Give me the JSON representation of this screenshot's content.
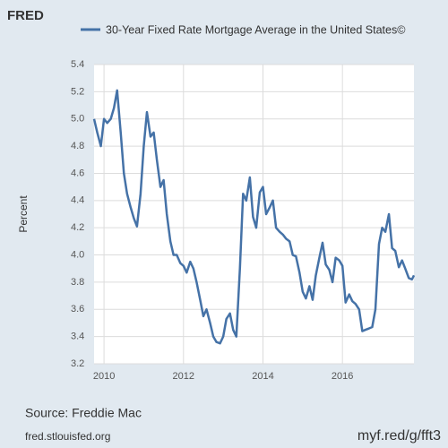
{
  "logo": "FRED",
  "chart_data": {
    "type": "line",
    "title": "30-Year Fixed Rate Mortgage Average in the United States©",
    "y_label": "Percent",
    "source": "Source: Freddie Mac",
    "site": "fred.stlouisfed.org",
    "short_url": "myf.red/g/fft3",
    "xlim": [
      2009.75,
      2017.8
    ],
    "xticks": [
      2010,
      2012,
      2014,
      2016
    ],
    "ylim": [
      3.2,
      5.4
    ],
    "yticks": [
      3.2,
      3.4,
      3.6,
      3.8,
      {
        "value": 4.0,
        "label": "4.0"
      },
      4.2,
      4.4,
      4.6,
      4.8,
      {
        "value": 5.0,
        "label": "5.0"
      },
      5.2,
      5.4
    ],
    "grid": true,
    "x": [
      2009.75,
      2009.83,
      2009.92,
      2010.0,
      2010.08,
      2010.17,
      2010.25,
      2010.33,
      2010.42,
      2010.5,
      2010.58,
      2010.67,
      2010.75,
      2010.83,
      2010.92,
      2011.0,
      2011.08,
      2011.17,
      2011.25,
      2011.33,
      2011.42,
      2011.5,
      2011.58,
      2011.67,
      2011.75,
      2011.83,
      2011.92,
      2012.0,
      2012.08,
      2012.17,
      2012.25,
      2012.33,
      2012.42,
      2012.5,
      2012.58,
      2012.67,
      2012.75,
      2012.83,
      2012.92,
      2013.0,
      2013.08,
      2013.17,
      2013.25,
      2013.33,
      2013.42,
      2013.5,
      2013.58,
      2013.67,
      2013.75,
      2013.83,
      2013.92,
      2014.0,
      2014.08,
      2014.17,
      2014.25,
      2014.33,
      2014.42,
      2014.5,
      2014.58,
      2014.67,
      2014.75,
      2014.83,
      2014.92,
      2015.0,
      2015.08,
      2015.17,
      2015.25,
      2015.33,
      2015.42,
      2015.5,
      2015.58,
      2015.67,
      2015.75,
      2015.83,
      2015.92,
      2016.0,
      2016.08,
      2016.17,
      2016.25,
      2016.33,
      2016.42,
      2016.5,
      2016.58,
      2016.67,
      2016.75,
      2016.83,
      2016.92,
      2017.0,
      2017.08,
      2017.17,
      2017.25,
      2017.33,
      2017.42,
      2017.5,
      2017.58,
      2017.67,
      2017.75,
      2017.8
    ],
    "series": [
      {
        "name": "30-Year Fixed Rate Mortgage Average in the United States©",
        "color": "#4572a7",
        "values": [
          5.0,
          4.9,
          4.8,
          5.0,
          4.97,
          5.0,
          5.08,
          5.21,
          4.9,
          4.6,
          4.45,
          4.35,
          4.27,
          4.21,
          4.45,
          4.8,
          5.05,
          4.87,
          4.9,
          4.7,
          4.5,
          4.55,
          4.3,
          4.1,
          4.0,
          4.0,
          3.94,
          3.92,
          3.87,
          3.95,
          3.9,
          3.8,
          3.67,
          3.55,
          3.6,
          3.5,
          3.4,
          3.36,
          3.35,
          3.4,
          3.53,
          3.57,
          3.45,
          3.4,
          3.9,
          4.45,
          4.4,
          4.57,
          4.28,
          4.2,
          4.46,
          4.5,
          4.3,
          4.35,
          4.4,
          4.2,
          4.17,
          4.15,
          4.12,
          4.1,
          4.0,
          3.99,
          3.87,
          3.73,
          3.68,
          3.77,
          3.67,
          3.85,
          3.98,
          4.09,
          3.93,
          3.89,
          3.8,
          3.98,
          3.96,
          3.92,
          3.65,
          3.71,
          3.66,
          3.64,
          3.6,
          3.44,
          3.45,
          3.46,
          3.47,
          3.6,
          4.08,
          4.2,
          4.17,
          4.3,
          4.05,
          4.03,
          3.91,
          3.96,
          3.9,
          3.83,
          3.82,
          3.85
        ]
      }
    ]
  }
}
